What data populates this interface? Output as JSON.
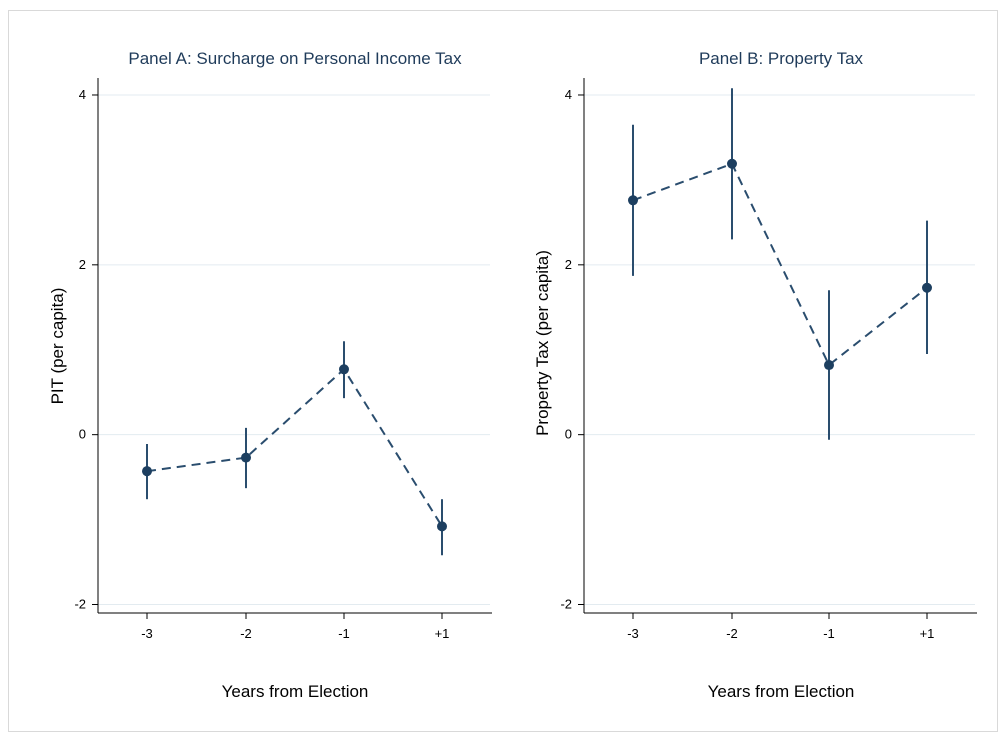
{
  "chart_data": [
    {
      "type": "line",
      "title": "Panel A: Surcharge on Personal Income Tax",
      "xlabel": "Years from Election",
      "ylabel": "PIT (per capita)",
      "categories": [
        "-3",
        "-2",
        "-1",
        "+1"
      ],
      "ylim": [
        -2.1,
        4.2
      ],
      "yticks": [
        -2,
        0,
        2,
        4
      ],
      "ytick_labels": [
        "-2",
        "0",
        "2",
        "4"
      ],
      "grid": true,
      "series": [
        {
          "values": [
            -0.43,
            -0.27,
            0.77,
            -1.08
          ],
          "ci_low": [
            -0.76,
            -0.63,
            0.43,
            -1.42
          ],
          "ci_high": [
            -0.11,
            0.08,
            1.1,
            -0.76
          ]
        }
      ],
      "colors": {
        "series": "#2a4d6e",
        "marker": "#1d3f60",
        "title": "#1f3b5a"
      }
    },
    {
      "type": "line",
      "title": "Panel B: Property Tax",
      "xlabel": "Years from Election",
      "ylabel": "Property Tax (per capita)",
      "categories": [
        "-3",
        "-2",
        "-1",
        "+1"
      ],
      "ylim": [
        -2.1,
        4.2
      ],
      "yticks": [
        -2,
        0,
        2,
        4
      ],
      "ytick_labels": [
        "-2",
        "0",
        "2",
        "4"
      ],
      "grid": true,
      "series": [
        {
          "values": [
            2.76,
            3.19,
            0.82,
            1.73
          ],
          "ci_low": [
            1.87,
            2.3,
            -0.06,
            0.95
          ],
          "ci_high": [
            3.65,
            4.08,
            1.7,
            2.52
          ]
        }
      ],
      "colors": {
        "series": "#2a4d6e",
        "marker": "#1d3f60",
        "title": "#1f3b5a"
      }
    }
  ]
}
